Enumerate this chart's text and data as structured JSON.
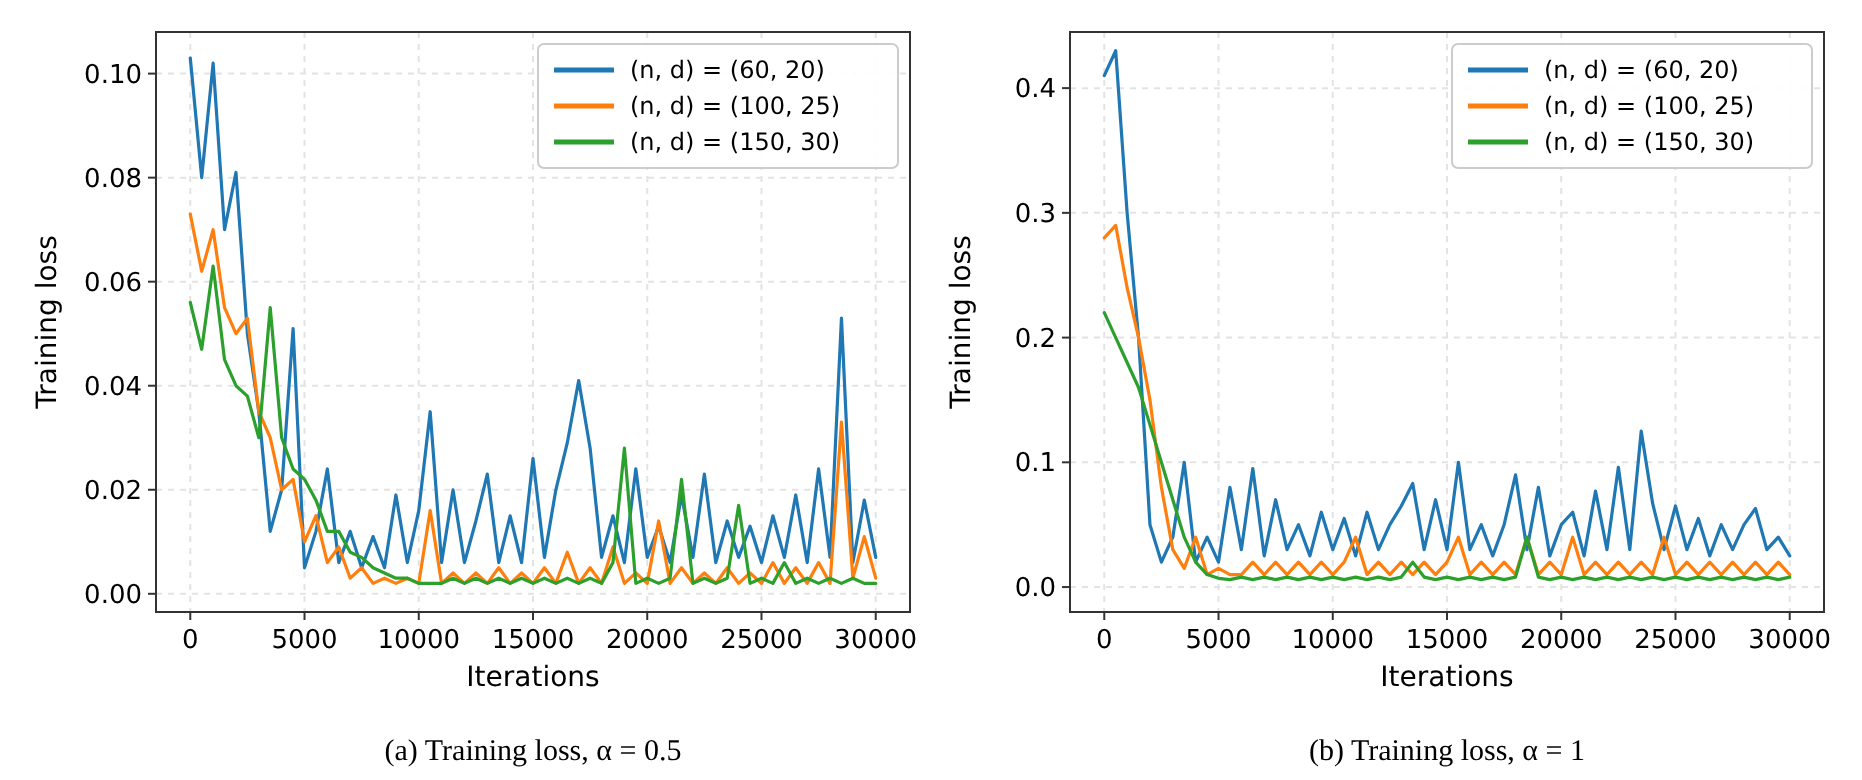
{
  "chart_data": [
    {
      "type": "line",
      "annotations": [
        "(a) Training loss, α = 0.5"
      ],
      "xlabel": "Iterations",
      "ylabel": "Training loss",
      "grid": true,
      "legend": "top right",
      "line_style": "solid",
      "x": [
        0,
        500,
        1000,
        1500,
        2000,
        2500,
        3000,
        3500,
        4000,
        4500,
        5000,
        5500,
        6000,
        6500,
        7000,
        7500,
        8000,
        8500,
        9000,
        9500,
        10000,
        10500,
        11000,
        11500,
        12000,
        12500,
        13000,
        13500,
        14000,
        14500,
        15000,
        15500,
        16000,
        16500,
        17000,
        17500,
        18000,
        18500,
        19000,
        19500,
        20000,
        20500,
        21000,
        21500,
        22000,
        22500,
        23000,
        23500,
        24000,
        24500,
        25000,
        25500,
        26000,
        26500,
        27000,
        27500,
        28000,
        28500,
        29000,
        29500,
        30000
      ],
      "xlim": [
        -1500,
        31500
      ],
      "xticks": [
        0,
        5000,
        10000,
        15000,
        20000,
        25000,
        30000
      ],
      "ylim": [
        -0.0035,
        0.108
      ],
      "yticks": [
        {
          "value": 0,
          "label": "0.00"
        },
        {
          "value": 0.02,
          "label": "0.02"
        },
        {
          "value": 0.04,
          "label": "0.04"
        },
        {
          "value": 0.06,
          "label": "0.06"
        },
        {
          "value": 0.08,
          "label": "0.08"
        },
        {
          "value": 0.1,
          "label": "0.10"
        }
      ],
      "series": [
        {
          "name": "(n, d) = (60, 20)",
          "color": "#1f77b4",
          "values": [
            0.103,
            0.08,
            0.102,
            0.07,
            0.081,
            0.05,
            0.035,
            0.012,
            0.02,
            0.051,
            0.005,
            0.012,
            0.024,
            0.006,
            0.012,
            0.005,
            0.011,
            0.005,
            0.019,
            0.006,
            0.016,
            0.035,
            0.006,
            0.02,
            0.006,
            0.014,
            0.023,
            0.006,
            0.015,
            0.006,
            0.026,
            0.007,
            0.02,
            0.029,
            0.041,
            0.028,
            0.007,
            0.015,
            0.006,
            0.024,
            0.007,
            0.013,
            0.006,
            0.019,
            0.007,
            0.023,
            0.006,
            0.014,
            0.007,
            0.013,
            0.006,
            0.015,
            0.007,
            0.019,
            0.006,
            0.024,
            0.007,
            0.053,
            0.006,
            0.018,
            0.007
          ]
        },
        {
          "name": "(n, d) = (100, 25)",
          "color": "#ff7f0e",
          "values": [
            0.073,
            0.062,
            0.07,
            0.055,
            0.05,
            0.053,
            0.035,
            0.03,
            0.02,
            0.022,
            0.01,
            0.015,
            0.006,
            0.009,
            0.003,
            0.005,
            0.002,
            0.003,
            0.002,
            0.003,
            0.002,
            0.016,
            0.002,
            0.004,
            0.002,
            0.004,
            0.002,
            0.005,
            0.002,
            0.004,
            0.002,
            0.005,
            0.002,
            0.008,
            0.002,
            0.005,
            0.002,
            0.009,
            0.002,
            0.004,
            0.002,
            0.014,
            0.002,
            0.005,
            0.002,
            0.004,
            0.002,
            0.005,
            0.002,
            0.004,
            0.002,
            0.006,
            0.002,
            0.005,
            0.002,
            0.006,
            0.002,
            0.033,
            0.003,
            0.011,
            0.003
          ]
        },
        {
          "name": "(n, d) = (150, 30)",
          "color": "#2ca02c",
          "values": [
            0.056,
            0.047,
            0.063,
            0.045,
            0.04,
            0.038,
            0.03,
            0.055,
            0.03,
            0.024,
            0.022,
            0.018,
            0.012,
            0.012,
            0.008,
            0.007,
            0.005,
            0.004,
            0.003,
            0.003,
            0.002,
            0.002,
            0.002,
            0.003,
            0.002,
            0.003,
            0.002,
            0.003,
            0.002,
            0.003,
            0.002,
            0.003,
            0.002,
            0.003,
            0.002,
            0.003,
            0.002,
            0.006,
            0.028,
            0.002,
            0.003,
            0.002,
            0.003,
            0.022,
            0.002,
            0.003,
            0.002,
            0.003,
            0.017,
            0.002,
            0.003,
            0.002,
            0.006,
            0.002,
            0.003,
            0.002,
            0.003,
            0.002,
            0.003,
            0.002,
            0.002
          ]
        }
      ]
    },
    {
      "type": "line",
      "annotations": [
        "(b) Training loss, α = 1"
      ],
      "xlabel": "Iterations",
      "ylabel": "Training loss",
      "grid": true,
      "legend": "top right",
      "line_style": "solid",
      "x": [
        0,
        500,
        1000,
        1500,
        2000,
        2500,
        3000,
        3500,
        4000,
        4500,
        5000,
        5500,
        6000,
        6500,
        7000,
        7500,
        8000,
        8500,
        9000,
        9500,
        10000,
        10500,
        11000,
        11500,
        12000,
        12500,
        13000,
        13500,
        14000,
        14500,
        15000,
        15500,
        16000,
        16500,
        17000,
        17500,
        18000,
        18500,
        19000,
        19500,
        20000,
        20500,
        21000,
        21500,
        22000,
        22500,
        23000,
        23500,
        24000,
        24500,
        25000,
        25500,
        26000,
        26500,
        27000,
        27500,
        28000,
        28500,
        29000,
        29500,
        30000
      ],
      "xlim": [
        -1500,
        31500
      ],
      "xticks": [
        0,
        5000,
        10000,
        15000,
        20000,
        25000,
        30000
      ],
      "ylim": [
        -0.02,
        0.445
      ],
      "yticks": [
        {
          "value": 0,
          "label": "0.0"
        },
        {
          "value": 0.1,
          "label": "0.1"
        },
        {
          "value": 0.2,
          "label": "0.2"
        },
        {
          "value": 0.3,
          "label": "0.3"
        },
        {
          "value": 0.4,
          "label": "0.4"
        }
      ],
      "series": [
        {
          "name": "(n, d) = (60, 20)",
          "color": "#1f77b4",
          "values": [
            0.41,
            0.43,
            0.3,
            0.2,
            0.05,
            0.02,
            0.04,
            0.1,
            0.02,
            0.04,
            0.02,
            0.08,
            0.03,
            0.095,
            0.025,
            0.07,
            0.03,
            0.05,
            0.025,
            0.06,
            0.03,
            0.055,
            0.025,
            0.06,
            0.03,
            0.05,
            0.065,
            0.083,
            0.03,
            0.07,
            0.03,
            0.1,
            0.03,
            0.05,
            0.025,
            0.05,
            0.09,
            0.03,
            0.08,
            0.025,
            0.05,
            0.06,
            0.025,
            0.077,
            0.03,
            0.096,
            0.03,
            0.125,
            0.067,
            0.03,
            0.065,
            0.03,
            0.055,
            0.025,
            0.05,
            0.03,
            0.05,
            0.063,
            0.03,
            0.04,
            0.025
          ]
        },
        {
          "name": "(n, d) = (100, 25)",
          "color": "#ff7f0e",
          "values": [
            0.28,
            0.29,
            0.24,
            0.2,
            0.15,
            0.08,
            0.03,
            0.015,
            0.04,
            0.01,
            0.015,
            0.01,
            0.01,
            0.02,
            0.01,
            0.02,
            0.01,
            0.02,
            0.01,
            0.02,
            0.01,
            0.02,
            0.04,
            0.01,
            0.02,
            0.01,
            0.02,
            0.01,
            0.02,
            0.01,
            0.02,
            0.04,
            0.01,
            0.02,
            0.01,
            0.02,
            0.01,
            0.04,
            0.01,
            0.02,
            0.01,
            0.04,
            0.01,
            0.02,
            0.01,
            0.02,
            0.01,
            0.02,
            0.01,
            0.04,
            0.01,
            0.02,
            0.01,
            0.02,
            0.01,
            0.02,
            0.01,
            0.02,
            0.01,
            0.02,
            0.01
          ]
        },
        {
          "name": "(n, d) = (150, 30)",
          "color": "#2ca02c",
          "values": [
            0.22,
            0.2,
            0.18,
            0.16,
            0.13,
            0.1,
            0.07,
            0.04,
            0.02,
            0.01,
            0.007,
            0.006,
            0.008,
            0.006,
            0.008,
            0.006,
            0.008,
            0.006,
            0.008,
            0.006,
            0.008,
            0.006,
            0.008,
            0.006,
            0.008,
            0.006,
            0.008,
            0.02,
            0.008,
            0.006,
            0.008,
            0.006,
            0.008,
            0.006,
            0.008,
            0.006,
            0.008,
            0.04,
            0.008,
            0.006,
            0.008,
            0.006,
            0.008,
            0.006,
            0.008,
            0.006,
            0.008,
            0.006,
            0.008,
            0.006,
            0.008,
            0.006,
            0.008,
            0.006,
            0.008,
            0.006,
            0.008,
            0.006,
            0.008,
            0.006,
            0.008
          ]
        }
      ]
    }
  ]
}
